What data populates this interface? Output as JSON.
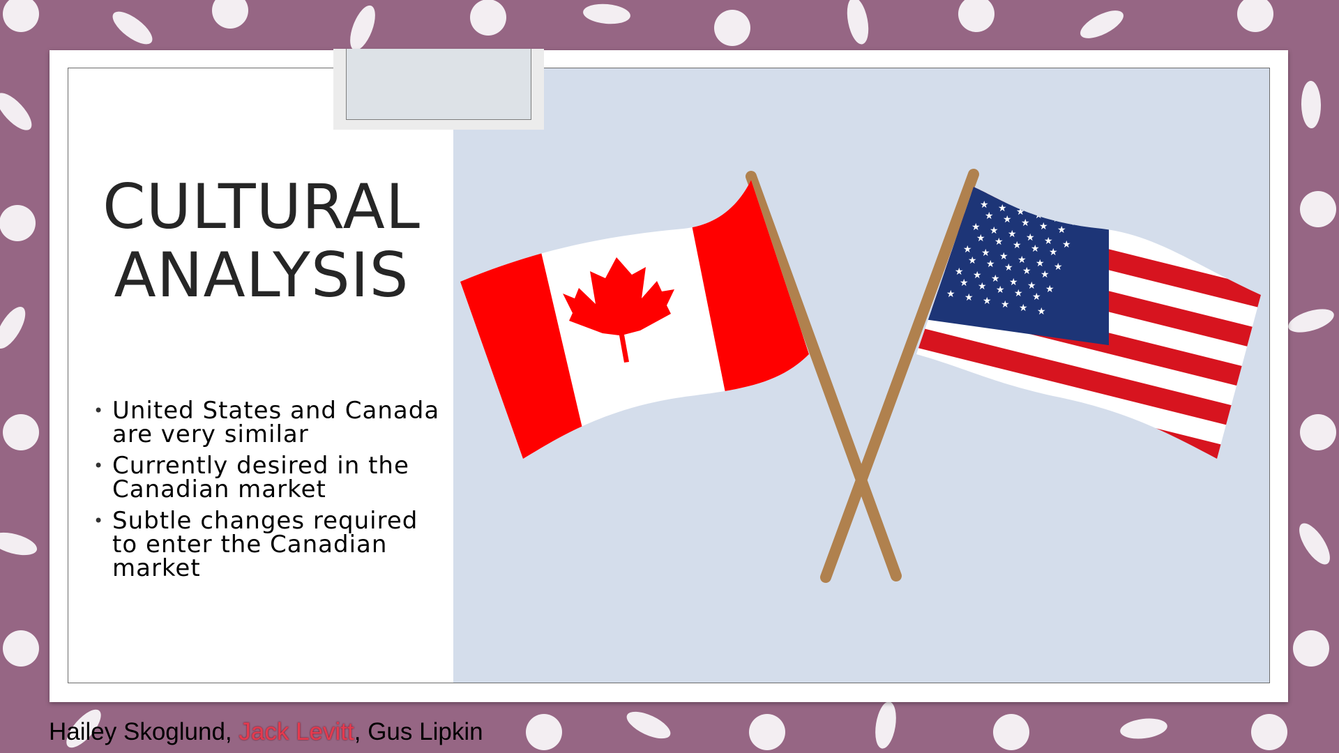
{
  "slide": {
    "title_line1": "CULTURAL",
    "title_line2": "ANALYSIS",
    "bullets": [
      {
        "label": "United States and Canada are very similar"
      },
      {
        "label": "Currently desired in the Canadian market"
      },
      {
        "label": "Subtle changes required to enter the Canadian market"
      }
    ],
    "image": {
      "description_icons": [
        "canada-flag-icon",
        "usa-flag-icon"
      ]
    }
  },
  "footer": {
    "author1": "Hailey Skoglund, ",
    "author2": "Jack Levitt",
    "author3": ", Gus Lipkin"
  },
  "colors": {
    "background": "#966684",
    "image_panel": "#d4ddeb",
    "canada_red": "#ff0000",
    "usa_red": "#d7141f",
    "usa_blue": "#1d3577",
    "pole": "#b0814e",
    "highlight_name": "#e53a4e"
  }
}
